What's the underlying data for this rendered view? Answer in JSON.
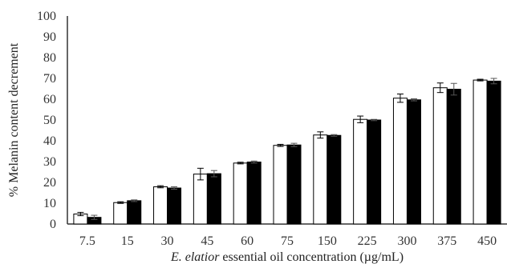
{
  "chart_data": {
    "type": "bar",
    "categories": [
      "7.5",
      "15",
      "30",
      "45",
      "60",
      "75",
      "150",
      "225",
      "300",
      "375",
      "450"
    ],
    "series": [
      {
        "fill": "#ffffff",
        "values": [
          4.8,
          10.3,
          17.9,
          24.0,
          29.3,
          37.8,
          42.8,
          50.3,
          60.5,
          65.5,
          69.2
        ],
        "errors": [
          0.8,
          0.4,
          0.5,
          2.8,
          0.4,
          0.5,
          1.5,
          1.6,
          2.0,
          2.3,
          0.4
        ]
      },
      {
        "fill": "#000000",
        "values": [
          3.2,
          11.2,
          17.3,
          24.2,
          29.8,
          38.0,
          42.6,
          50.0,
          59.7,
          64.8,
          68.7
        ],
        "errors": [
          1.0,
          0.4,
          0.6,
          1.5,
          0.5,
          0.8,
          0.4,
          0.3,
          0.5,
          2.8,
          1.3
        ]
      }
    ],
    "ylim": [
      0,
      100
    ],
    "yticks": [
      0,
      10,
      20,
      30,
      40,
      50,
      60,
      70,
      80,
      90,
      100
    ],
    "ylabel": "% Melanin content decrement",
    "xlabel_italic": "E. elatior",
    "xlabel_rest": " essential oil concentration (µg/mL)",
    "grid": false,
    "legend": "none"
  }
}
